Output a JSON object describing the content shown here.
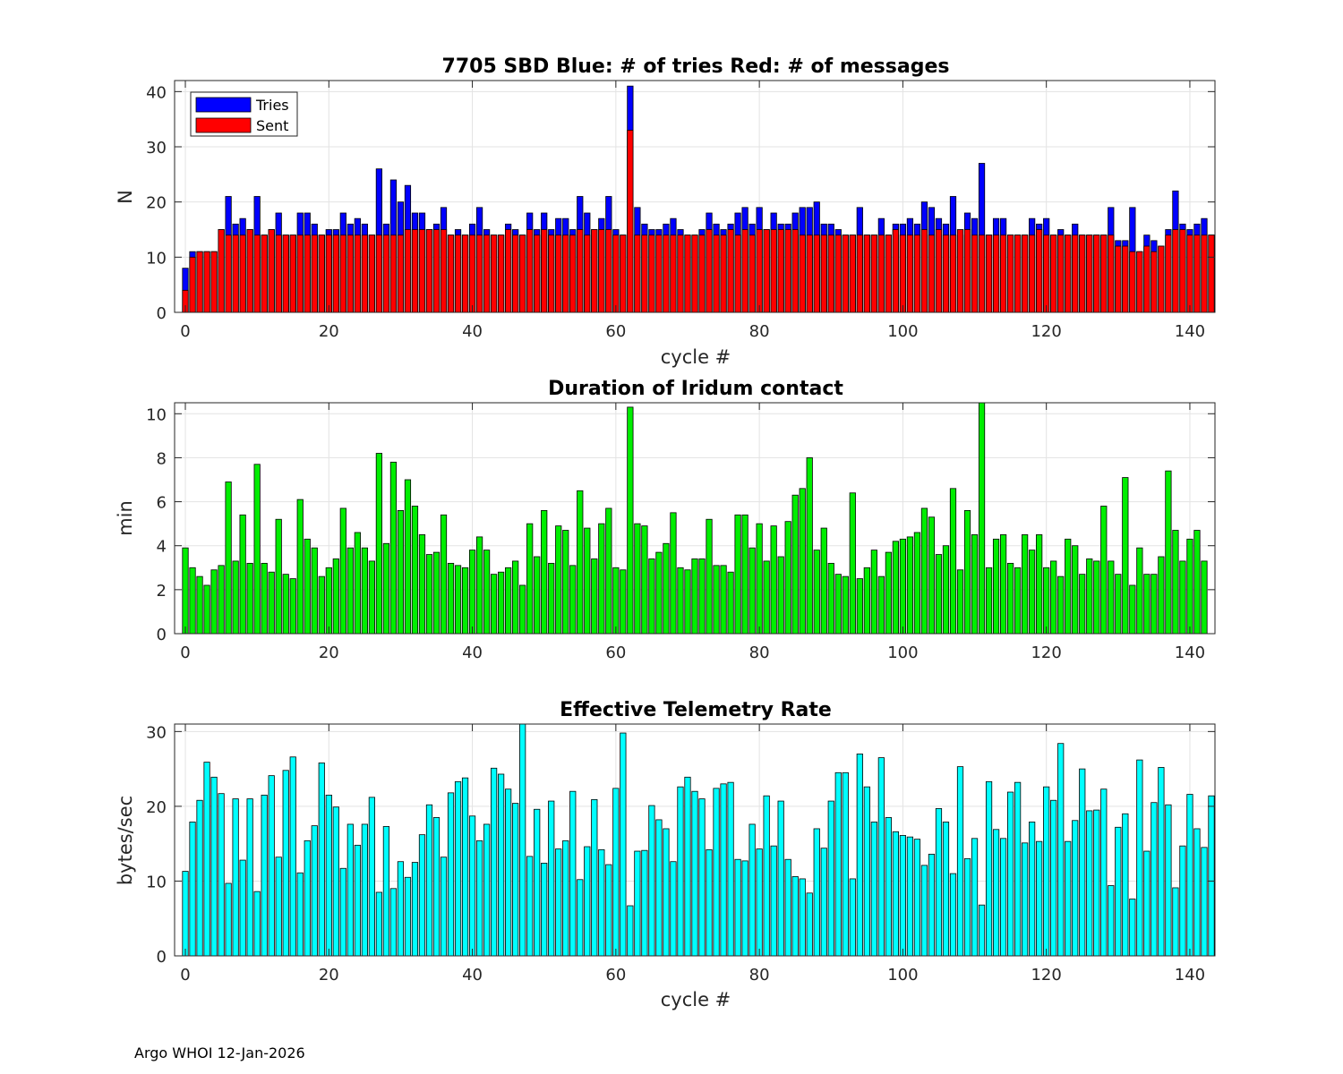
{
  "footer": "Argo WHOI 12-Jan-2026",
  "chart_data": [
    {
      "type": "bar",
      "id": "top",
      "title": "7705 SBD  Blue: # of tries   Red: # of messages",
      "xlabel": "cycle #",
      "ylabel": "N",
      "xlim": [
        -1.5,
        143.5
      ],
      "ylim": [
        0,
        42
      ],
      "xticks": [
        0,
        20,
        40,
        60,
        80,
        100,
        120,
        140
      ],
      "yticks": [
        0,
        10,
        20,
        30,
        40
      ],
      "grid": true,
      "legend": {
        "position": "top-left",
        "entries": [
          "Tries",
          "Sent"
        ]
      },
      "colors": {
        "Tries": "#0000ff",
        "Sent": "#ff0000"
      },
      "x_start": 0,
      "series": [
        {
          "name": "Tries",
          "values": [
            8,
            11,
            11,
            11,
            11,
            15,
            21,
            16,
            17,
            15,
            21,
            14,
            15,
            18,
            14,
            14,
            18,
            18,
            16,
            14,
            15,
            15,
            18,
            16,
            17,
            16,
            14,
            26,
            16,
            24,
            20,
            23,
            18,
            18,
            15,
            16,
            19,
            14,
            15,
            14,
            16,
            19,
            15,
            14,
            14,
            16,
            15,
            14,
            18,
            15,
            18,
            15,
            17,
            17,
            15,
            21,
            18,
            15,
            17,
            21,
            15,
            14,
            41,
            19,
            16,
            15,
            15,
            16,
            17,
            15,
            14,
            14,
            15,
            18,
            16,
            15,
            16,
            18,
            19,
            16,
            19,
            15,
            18,
            16,
            16,
            18,
            19,
            19,
            20,
            16,
            16,
            15,
            14,
            14,
            19,
            14,
            14,
            17,
            14,
            16,
            16,
            17,
            16,
            20,
            19,
            17,
            16,
            21,
            14,
            18,
            17,
            27,
            14,
            17,
            17,
            14,
            14,
            14,
            17,
            16,
            17,
            14,
            15,
            14,
            16,
            14,
            14,
            14,
            14,
            19,
            13,
            13,
            19,
            11,
            14,
            13,
            12,
            15,
            22,
            16,
            15,
            16,
            17,
            14
          ]
        },
        {
          "name": "Sent",
          "values": [
            4,
            10,
            11,
            11,
            11,
            15,
            14,
            14,
            14,
            15,
            14,
            14,
            15,
            14,
            14,
            14,
            14,
            14,
            14,
            14,
            14,
            14,
            14,
            14,
            14,
            14,
            14,
            14,
            14,
            14,
            14,
            15,
            15,
            15,
            15,
            15,
            15,
            14,
            14,
            14,
            14,
            14,
            14,
            14,
            14,
            15,
            14,
            14,
            15,
            14,
            15,
            14,
            14,
            14,
            14,
            15,
            14,
            15,
            15,
            15,
            14,
            14,
            33,
            14,
            14,
            14,
            14,
            14,
            14,
            14,
            14,
            14,
            14,
            15,
            14,
            14,
            15,
            14,
            15,
            14,
            15,
            15,
            15,
            15,
            15,
            15,
            14,
            14,
            14,
            14,
            14,
            14,
            14,
            14,
            14,
            14,
            14,
            14,
            14,
            15,
            14,
            14,
            14,
            15,
            14,
            15,
            14,
            14,
            15,
            15,
            14,
            14,
            14,
            14,
            14,
            14,
            14,
            14,
            14,
            15,
            14,
            14,
            14,
            14,
            14,
            14,
            14,
            14,
            14,
            14,
            12,
            12,
            11,
            11,
            12,
            11,
            12,
            14,
            15,
            15,
            14,
            14,
            14,
            14
          ]
        }
      ]
    },
    {
      "type": "bar",
      "id": "mid",
      "title": "Duration of Iridum contact",
      "xlabel": "",
      "ylabel": "min",
      "xlim": [
        -1.5,
        143.5
      ],
      "ylim": [
        0,
        10.5
      ],
      "xticks": [
        0,
        20,
        40,
        60,
        80,
        100,
        120,
        140
      ],
      "yticks": [
        0,
        2,
        4,
        6,
        8,
        10
      ],
      "grid": true,
      "colors": {
        "bar": "#00ee00"
      },
      "x_start": 0,
      "series": [
        {
          "name": "Duration",
          "values": [
            3.9,
            3.0,
            2.6,
            2.2,
            2.9,
            3.1,
            6.9,
            3.3,
            5.4,
            3.2,
            7.7,
            3.2,
            2.8,
            5.2,
            2.7,
            2.5,
            6.1,
            4.3,
            3.9,
            2.6,
            3.0,
            3.4,
            5.7,
            3.9,
            4.6,
            3.9,
            3.3,
            8.2,
            4.1,
            7.8,
            5.6,
            7.0,
            5.8,
            4.5,
            3.6,
            3.7,
            5.4,
            3.2,
            3.1,
            3.0,
            3.8,
            4.4,
            3.8,
            2.7,
            2.8,
            3.0,
            3.3,
            2.2,
            5.0,
            3.5,
            5.6,
            3.2,
            4.9,
            4.7,
            3.1,
            6.5,
            4.8,
            3.4,
            5.0,
            5.7,
            3.0,
            2.9,
            10.3,
            5.0,
            4.9,
            3.4,
            3.7,
            4.1,
            5.5,
            3.0,
            2.9,
            3.4,
            3.4,
            5.2,
            3.1,
            3.1,
            2.8,
            5.4,
            5.4,
            3.9,
            5.0,
            3.3,
            4.9,
            3.5,
            5.1,
            6.3,
            6.6,
            8.0,
            3.8,
            4.8,
            3.2,
            2.7,
            2.6,
            6.4,
            2.5,
            3.0,
            3.8,
            2.6,
            3.7,
            4.2,
            4.3,
            4.4,
            4.6,
            5.7,
            5.3,
            3.6,
            4.0,
            6.6,
            2.9,
            5.6,
            4.5,
            10.5,
            3.0,
            4.3,
            4.5,
            3.2,
            3.0,
            4.5,
            3.8,
            4.5,
            3.0,
            3.3,
            2.6,
            4.3,
            4.0,
            2.7,
            3.4,
            3.3,
            5.8,
            3.3,
            2.7,
            7.1,
            2.2,
            3.9,
            2.7,
            2.7,
            3.5,
            7.4,
            4.7,
            3.3,
            4.3,
            4.7,
            3.3
          ]
        }
      ]
    },
    {
      "type": "bar",
      "id": "bot",
      "title": "Effective Telemetry Rate",
      "xlabel": "cycle #",
      "ylabel": "bytes/sec",
      "xlim": [
        -1.5,
        143.5
      ],
      "ylim": [
        0,
        31
      ],
      "xticks": [
        0,
        20,
        40,
        60,
        80,
        100,
        120,
        140
      ],
      "yticks": [
        0,
        10,
        20,
        30
      ],
      "grid": true,
      "colors": {
        "bar": "#00ffff"
      },
      "x_start": 0,
      "series": [
        {
          "name": "Rate",
          "values": [
            11.3,
            17.9,
            20.8,
            25.9,
            23.9,
            21.7,
            9.7,
            21.0,
            12.8,
            21.0,
            8.6,
            21.5,
            24.1,
            13.2,
            24.8,
            26.6,
            11.1,
            15.4,
            17.4,
            25.8,
            21.5,
            19.9,
            11.7,
            17.6,
            14.8,
            17.6,
            21.2,
            8.5,
            17.3,
            9.0,
            12.6,
            10.5,
            12.5,
            16.2,
            20.2,
            18.5,
            13.2,
            21.8,
            23.3,
            23.8,
            18.7,
            15.4,
            17.6,
            25.1,
            24.3,
            22.3,
            20.4,
            31.0,
            13.3,
            19.6,
            12.4,
            20.7,
            14.3,
            15.4,
            22.0,
            10.2,
            14.6,
            20.9,
            14.2,
            12.2,
            22.4,
            29.8,
            6.7,
            14.0,
            14.1,
            20.1,
            18.2,
            17.0,
            12.6,
            22.6,
            23.9,
            22.0,
            21.0,
            14.2,
            22.4,
            23.0,
            23.2,
            12.9,
            12.7,
            17.6,
            14.3,
            21.4,
            14.7,
            20.7,
            12.9,
            10.6,
            10.3,
            8.4,
            17.0,
            14.4,
            20.7,
            24.5,
            24.5,
            10.3,
            27.0,
            22.6,
            17.9,
            26.5,
            18.5,
            16.6,
            16.1,
            15.9,
            15.6,
            12.1,
            13.6,
            19.7,
            17.9,
            11.0,
            25.3,
            13.0,
            15.7,
            6.8,
            23.3,
            16.9,
            15.7,
            21.9,
            23.2,
            15.1,
            17.9,
            15.3,
            22.6,
            20.8,
            28.4,
            15.3,
            18.1,
            25.0,
            19.4,
            19.5,
            22.3,
            9.4,
            17.2,
            19.0,
            7.6,
            26.2,
            14.0,
            20.5,
            25.2,
            20.2,
            9.1,
            14.7,
            21.6,
            17.0,
            14.5,
            21.4
          ]
        }
      ]
    }
  ]
}
